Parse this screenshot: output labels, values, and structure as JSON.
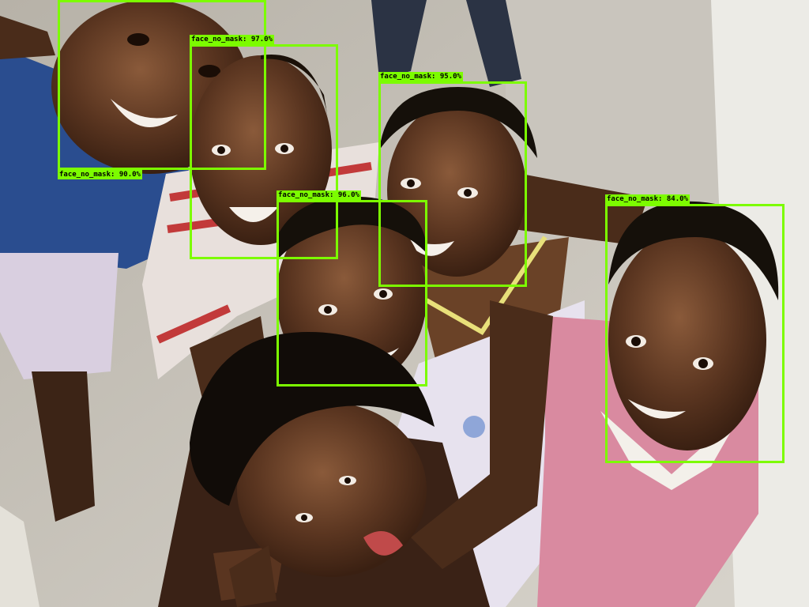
{
  "image": {
    "alt_subject": "group-of-smiling-children",
    "box_color": "#7cfc00"
  },
  "detections": [
    {
      "label": "face_no_mask:  90.0%"
    },
    {
      "label": "face_no_mask:  97.0%"
    },
    {
      "label": "face_no_mask:  95.0%"
    },
    {
      "label": "face_no_mask:  96.0%"
    },
    {
      "label": "face_no_mask:  84.0%"
    }
  ]
}
